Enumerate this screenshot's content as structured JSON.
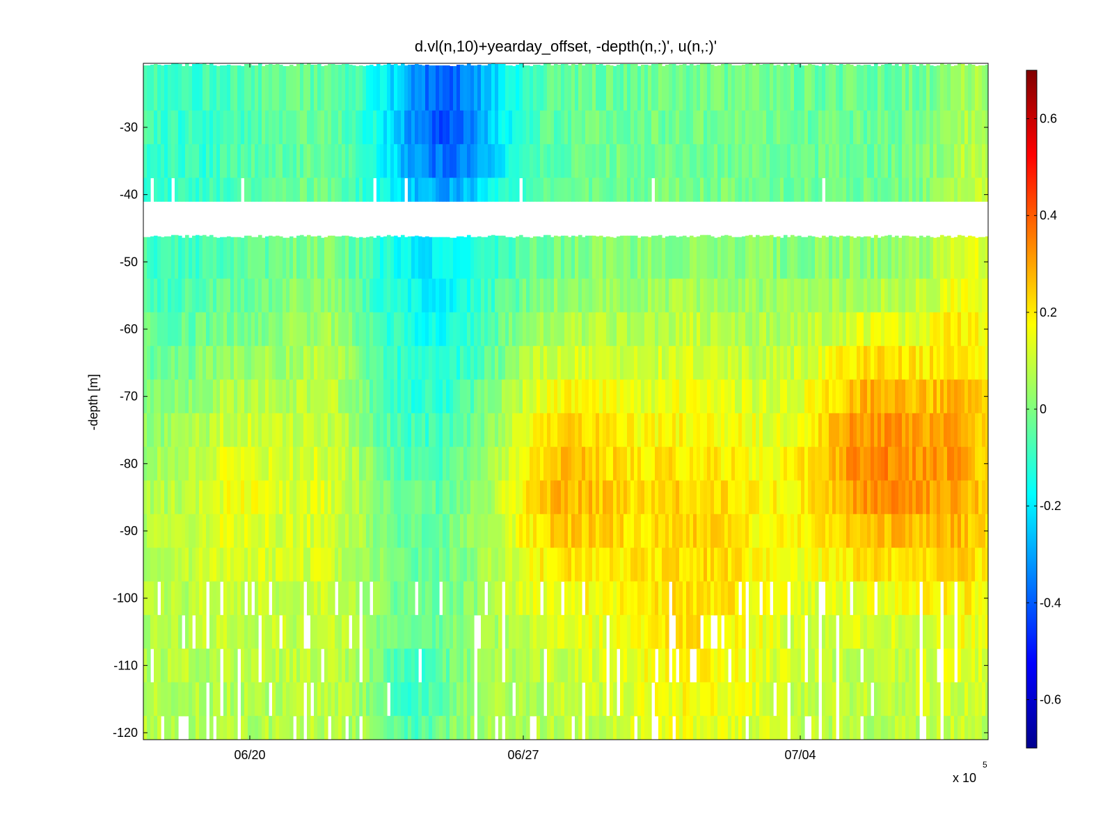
{
  "chart_data": {
    "type": "heatmap",
    "title": "d.vl(n,10)+yearday_offset, -depth(n,:)', u(n,:)'",
    "xlabel": "",
    "ylabel": "-depth [m]",
    "x_tick_labels": [
      "06/20",
      "06/27",
      "07/04"
    ],
    "x_exponent_label": "x 10",
    "x_exponent_power": "5",
    "y_ticks": [
      -30,
      -40,
      -50,
      -60,
      -70,
      -80,
      -90,
      -100,
      -110,
      -120
    ],
    "ylim": [
      -121,
      -20
    ],
    "colorbar": {
      "ticks": [
        "0.6",
        "0.4",
        "0.2",
        "0",
        "-0.2",
        "-0.4",
        "-0.6"
      ],
      "tick_values": [
        0.6,
        0.4,
        0.2,
        0,
        -0.2,
        -0.4,
        -0.6
      ],
      "range": [
        -0.7,
        0.7
      ],
      "colormap": "jet"
    },
    "depth_bins": [
      -25,
      -30,
      -35,
      -40,
      -50,
      -55,
      -60,
      -65,
      -70,
      -75,
      -80,
      -85,
      -90,
      -95,
      -100,
      -105,
      -110,
      -115,
      -120
    ],
    "gap_depth_range": [
      -46,
      -41
    ],
    "u_field_description": "approximate: negative (blue) near 06/23-06/25 upper layers; positive (yellow-orange) 06/27-06/29 and 07/05-07/07 at 70-95 m depth"
  }
}
